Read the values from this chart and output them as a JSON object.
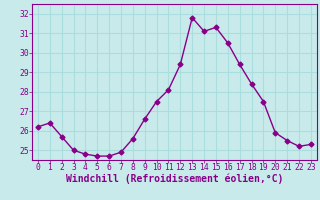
{
  "x": [
    0,
    1,
    2,
    3,
    4,
    5,
    6,
    7,
    8,
    9,
    10,
    11,
    12,
    13,
    14,
    15,
    16,
    17,
    18,
    19,
    20,
    21,
    22,
    23
  ],
  "y": [
    26.2,
    26.4,
    25.7,
    25.0,
    24.8,
    24.7,
    24.7,
    24.9,
    25.6,
    26.6,
    27.5,
    28.1,
    29.4,
    31.8,
    31.1,
    31.3,
    30.5,
    29.4,
    28.4,
    27.5,
    25.9,
    25.5,
    25.2,
    25.3
  ],
  "line_color": "#880088",
  "marker": "D",
  "marker_size": 2.5,
  "linewidth": 1.0,
  "xlabel": "Windchill (Refroidissement éolien,°C)",
  "xlabel_fontsize": 7.0,
  "ylim": [
    24.5,
    32.5
  ],
  "xlim": [
    -0.5,
    23.5
  ],
  "yticks": [
    25,
    26,
    27,
    28,
    29,
    30,
    31,
    32
  ],
  "xticks": [
    0,
    1,
    2,
    3,
    4,
    5,
    6,
    7,
    8,
    9,
    10,
    11,
    12,
    13,
    14,
    15,
    16,
    17,
    18,
    19,
    20,
    21,
    22,
    23
  ],
  "grid_color": "#aadddd",
  "background_color": "#c8eaea",
  "tick_fontsize": 5.8,
  "ylabel_fontsize": 6.0
}
